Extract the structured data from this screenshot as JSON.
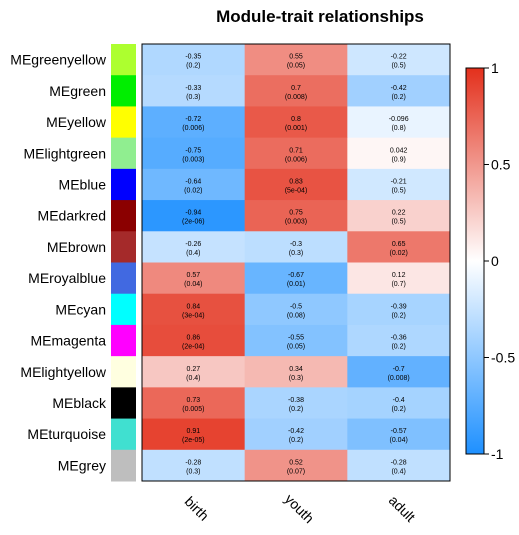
{
  "chart_data": {
    "type": "heatmap",
    "title": "Module-trait relationships",
    "columns": [
      "birth",
      "youth",
      "adult"
    ],
    "rows": [
      {
        "name": "MEgreenyellow",
        "color": "#ADFF2F",
        "values": [
          -0.35,
          0.55,
          -0.22
        ],
        "labels": [
          "-0.35",
          "0.55",
          "-0.22"
        ],
        "pvalues": [
          "(0.2)",
          "(0.05)",
          "(0.5)"
        ]
      },
      {
        "name": "MEgreen",
        "color": "#00EE00",
        "values": [
          -0.33,
          0.7,
          -0.42
        ],
        "labels": [
          "-0.33",
          "0.7",
          "-0.42"
        ],
        "pvalues": [
          "(0.3)",
          "(0.008)",
          "(0.2)"
        ]
      },
      {
        "name": "MEyellow",
        "color": "#FFFF00",
        "values": [
          -0.72,
          0.8,
          -0.096
        ],
        "labels": [
          "-0.72",
          "0.8",
          "-0.096"
        ],
        "pvalues": [
          "(0.006)",
          "(0.001)",
          "(0.8)"
        ]
      },
      {
        "name": "MElightgreen",
        "color": "#90EE90",
        "values": [
          -0.75,
          0.71,
          0.042
        ],
        "labels": [
          "-0.75",
          "0.71",
          "0.042"
        ],
        "pvalues": [
          "(0.003)",
          "(0.006)",
          "(0.9)"
        ]
      },
      {
        "name": "MEblue",
        "color": "#0000FF",
        "values": [
          -0.64,
          0.83,
          -0.21
        ],
        "labels": [
          "-0.64",
          "0.83",
          "-0.21"
        ],
        "pvalues": [
          "(0.02)",
          "(5e-04)",
          "(0.5)"
        ]
      },
      {
        "name": "MEdarkred",
        "color": "#8B0000",
        "values": [
          -0.94,
          0.75,
          0.22
        ],
        "labels": [
          "-0.94",
          "0.75",
          "0.22"
        ],
        "pvalues": [
          "(2e-06)",
          "(0.003)",
          "(0.5)"
        ]
      },
      {
        "name": "MEbrown",
        "color": "#A52A2A",
        "values": [
          -0.26,
          -0.3,
          0.65
        ],
        "labels": [
          "-0.26",
          "-0.3",
          "0.65"
        ],
        "pvalues": [
          "(0.4)",
          "(0.3)",
          "(0.02)"
        ]
      },
      {
        "name": "MEroyalblue",
        "color": "#4169E1",
        "values": [
          0.57,
          -0.67,
          0.12
        ],
        "labels": [
          "0.57",
          "-0.67",
          "0.12"
        ],
        "pvalues": [
          "(0.04)",
          "(0.01)",
          "(0.7)"
        ]
      },
      {
        "name": "MEcyan",
        "color": "#00FFFF",
        "values": [
          0.84,
          -0.5,
          -0.39
        ],
        "labels": [
          "0.84",
          "-0.5",
          "-0.39"
        ],
        "pvalues": [
          "(3e-04)",
          "(0.08)",
          "(0.2)"
        ]
      },
      {
        "name": "MEmagenta",
        "color": "#FF00FF",
        "values": [
          0.86,
          -0.55,
          -0.36
        ],
        "labels": [
          "0.86",
          "-0.55",
          "-0.36"
        ],
        "pvalues": [
          "(2e-04)",
          "(0.05)",
          "(0.2)"
        ]
      },
      {
        "name": "MElightyellow",
        "color": "#FFFFE0",
        "values": [
          0.27,
          0.34,
          -0.7
        ],
        "labels": [
          "0.27",
          "0.34",
          "-0.7"
        ],
        "pvalues": [
          "(0.4)",
          "(0.3)",
          "(0.008)"
        ]
      },
      {
        "name": "MEblack",
        "color": "#000000",
        "values": [
          0.73,
          -0.38,
          -0.4
        ],
        "labels": [
          "0.73",
          "-0.38",
          "-0.4"
        ],
        "pvalues": [
          "(0.005)",
          "(0.2)",
          "(0.2)"
        ]
      },
      {
        "name": "MEturquoise",
        "color": "#40E0D0",
        "values": [
          0.91,
          -0.42,
          -0.57
        ],
        "labels": [
          "0.91",
          "-0.42",
          "-0.57"
        ],
        "pvalues": [
          "(2e-05)",
          "(0.2)",
          "(0.04)"
        ]
      },
      {
        "name": "MEgrey",
        "color": "#BEBEBE",
        "values": [
          -0.28,
          0.52,
          -0.28
        ],
        "labels": [
          "-0.28",
          "0.52",
          "-0.28"
        ],
        "pvalues": [
          "(0.3)",
          "(0.07)",
          "(0.4)"
        ]
      }
    ],
    "colorbar": {
      "range": [
        -1,
        1
      ],
      "ticks": [
        1,
        0.5,
        0,
        -0.5,
        -1
      ],
      "tick_labels": [
        "1",
        "0.5",
        "0",
        "-0.5",
        "-1"
      ],
      "low_color": "#1E90FF",
      "mid_color": "#FFFFFF",
      "high_color": "#E3301C"
    }
  }
}
